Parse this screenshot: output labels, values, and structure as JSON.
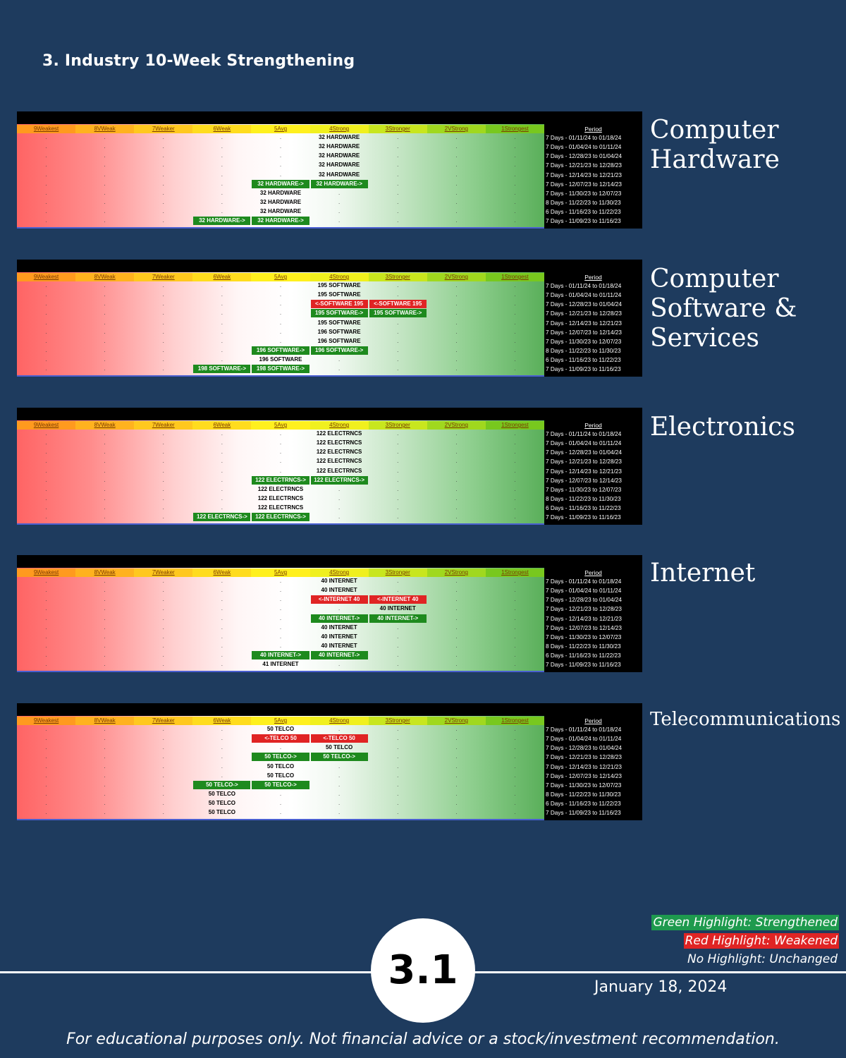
{
  "page_title": "3. Industry 10-Week Strengthening",
  "columns": [
    "9Weakest",
    "8VWeak",
    "7Weaker",
    "6Weak",
    "5Avg",
    "4Strong",
    "3Stronger",
    "2VStrong",
    "1Strongest"
  ],
  "period_header": "Period",
  "periods": [
    "7 Days - 01/11/24 to 01/18/24",
    "7 Days - 01/04/24 to 01/11/24",
    "7 Days - 12/28/23 to 01/04/24",
    "7 Days - 12/21/23 to 12/28/23",
    "7 Days - 12/14/23 to 12/21/23",
    "7 Days - 12/07/23 to 12/14/23",
    "7 Days - 11/30/23 to 12/07/23",
    "8 Days - 11/22/23 to 11/30/23",
    "6 Days - 11/16/23 to 11/22/23",
    "7 Days - 11/09/23 to 11/16/23"
  ],
  "colors": {
    "strengthened": "#1e8a1e",
    "weakened": "#e02424",
    "background": "#1e3b5e"
  },
  "sectors": [
    {
      "title": "Computer\nHardware",
      "rows": [
        [
          {
            "col": 5,
            "text": "32 HARDWARE",
            "hl": "none"
          }
        ],
        [
          {
            "col": 5,
            "text": "32 HARDWARE",
            "hl": "none"
          }
        ],
        [
          {
            "col": 5,
            "text": "32 HARDWARE",
            "hl": "none"
          }
        ],
        [
          {
            "col": 5,
            "text": "32 HARDWARE",
            "hl": "none"
          }
        ],
        [
          {
            "col": 5,
            "text": "32 HARDWARE",
            "hl": "none"
          }
        ],
        [
          {
            "col": 4,
            "text": "32 HARDWARE->",
            "hl": "green"
          },
          {
            "col": 5,
            "text": "32 HARDWARE->",
            "hl": "green"
          }
        ],
        [
          {
            "col": 4,
            "text": "32 HARDWARE",
            "hl": "none"
          }
        ],
        [
          {
            "col": 4,
            "text": "32 HARDWARE",
            "hl": "none"
          }
        ],
        [
          {
            "col": 4,
            "text": "32 HARDWARE",
            "hl": "none"
          }
        ],
        [
          {
            "col": 3,
            "text": "32 HARDWARE->",
            "hl": "green"
          },
          {
            "col": 4,
            "text": "32 HARDWARE->",
            "hl": "green"
          }
        ]
      ]
    },
    {
      "title": "Computer\nSoftware &\nServices",
      "rows": [
        [
          {
            "col": 5,
            "text": "195 SOFTWARE",
            "hl": "none"
          }
        ],
        [
          {
            "col": 5,
            "text": "195 SOFTWARE",
            "hl": "none"
          }
        ],
        [
          {
            "col": 5,
            "text": "<-SOFTWARE 195",
            "hl": "red"
          },
          {
            "col": 6,
            "text": "<-SOFTWARE 195",
            "hl": "red"
          }
        ],
        [
          {
            "col": 5,
            "text": "195 SOFTWARE->",
            "hl": "green"
          },
          {
            "col": 6,
            "text": "195 SOFTWARE->",
            "hl": "green"
          }
        ],
        [
          {
            "col": 5,
            "text": "195 SOFTWARE",
            "hl": "none"
          }
        ],
        [
          {
            "col": 5,
            "text": "196 SOFTWARE",
            "hl": "none"
          }
        ],
        [
          {
            "col": 5,
            "text": "196 SOFTWARE",
            "hl": "none"
          }
        ],
        [
          {
            "col": 4,
            "text": "196 SOFTWARE->",
            "hl": "green"
          },
          {
            "col": 5,
            "text": "196 SOFTWARE->",
            "hl": "green"
          }
        ],
        [
          {
            "col": 4,
            "text": "196 SOFTWARE",
            "hl": "none"
          }
        ],
        [
          {
            "col": 3,
            "text": "198 SOFTWARE->",
            "hl": "green"
          },
          {
            "col": 4,
            "text": "198 SOFTWARE->",
            "hl": "green"
          }
        ]
      ]
    },
    {
      "title": "Electronics",
      "rows": [
        [
          {
            "col": 5,
            "text": "122 ELECTRNCS",
            "hl": "none"
          }
        ],
        [
          {
            "col": 5,
            "text": "122 ELECTRNCS",
            "hl": "none"
          }
        ],
        [
          {
            "col": 5,
            "text": "122 ELECTRNCS",
            "hl": "none"
          }
        ],
        [
          {
            "col": 5,
            "text": "122 ELECTRNCS",
            "hl": "none"
          }
        ],
        [
          {
            "col": 5,
            "text": "122 ELECTRNCS",
            "hl": "none"
          }
        ],
        [
          {
            "col": 4,
            "text": "122 ELECTRNCS->",
            "hl": "green"
          },
          {
            "col": 5,
            "text": "122 ELECTRNCS->",
            "hl": "green"
          }
        ],
        [
          {
            "col": 4,
            "text": "122 ELECTRNCS",
            "hl": "none"
          }
        ],
        [
          {
            "col": 4,
            "text": "122 ELECTRNCS",
            "hl": "none"
          }
        ],
        [
          {
            "col": 4,
            "text": "122 ELECTRNCS",
            "hl": "none"
          }
        ],
        [
          {
            "col": 3,
            "text": "122 ELECTRNCS->",
            "hl": "green"
          },
          {
            "col": 4,
            "text": "122 ELECTRNCS->",
            "hl": "green"
          }
        ]
      ]
    },
    {
      "title": "Internet",
      "rows": [
        [
          {
            "col": 5,
            "text": "40 INTERNET",
            "hl": "none"
          }
        ],
        [
          {
            "col": 5,
            "text": "40 INTERNET",
            "hl": "none"
          }
        ],
        [
          {
            "col": 5,
            "text": "<-INTERNET 40",
            "hl": "red"
          },
          {
            "col": 6,
            "text": "<-INTERNET 40",
            "hl": "red"
          }
        ],
        [
          {
            "col": 6,
            "text": "40 INTERNET",
            "hl": "none"
          }
        ],
        [
          {
            "col": 5,
            "text": "40 INTERNET->",
            "hl": "green"
          },
          {
            "col": 6,
            "text": "40 INTERNET->",
            "hl": "green"
          }
        ],
        [
          {
            "col": 5,
            "text": "40 INTERNET",
            "hl": "none"
          }
        ],
        [
          {
            "col": 5,
            "text": "40 INTERNET",
            "hl": "none"
          }
        ],
        [
          {
            "col": 5,
            "text": "40 INTERNET",
            "hl": "none"
          }
        ],
        [
          {
            "col": 4,
            "text": "40 INTERNET->",
            "hl": "green"
          },
          {
            "col": 5,
            "text": "40 INTERNET->",
            "hl": "green"
          }
        ],
        [
          {
            "col": 4,
            "text": "41 INTERNET",
            "hl": "none"
          }
        ]
      ]
    },
    {
      "title": "Telecommunications",
      "rows": [
        [
          {
            "col": 4,
            "text": "50 TELCO",
            "hl": "none"
          }
        ],
        [
          {
            "col": 4,
            "text": "<-TELCO 50",
            "hl": "red"
          },
          {
            "col": 5,
            "text": "<-TELCO 50",
            "hl": "red"
          }
        ],
        [
          {
            "col": 5,
            "text": "50 TELCO",
            "hl": "none"
          }
        ],
        [
          {
            "col": 4,
            "text": "50 TELCO->",
            "hl": "green"
          },
          {
            "col": 5,
            "text": "50 TELCO->",
            "hl": "green"
          }
        ],
        [
          {
            "col": 4,
            "text": "50 TELCO",
            "hl": "none"
          }
        ],
        [
          {
            "col": 4,
            "text": "50 TELCO",
            "hl": "none"
          }
        ],
        [
          {
            "col": 3,
            "text": "50 TELCO->",
            "hl": "green"
          },
          {
            "col": 4,
            "text": "50 TELCO->",
            "hl": "green"
          }
        ],
        [
          {
            "col": 3,
            "text": "50 TELCO",
            "hl": "none"
          }
        ],
        [
          {
            "col": 3,
            "text": "50 TELCO",
            "hl": "none"
          }
        ],
        [
          {
            "col": 3,
            "text": "50 TELCO",
            "hl": "none"
          }
        ]
      ]
    }
  ],
  "legend": {
    "green": "Green Highlight: Strengthened",
    "red": "Red Highlight: Weakened",
    "none": "No Highlight: Unchanged"
  },
  "page_number": "3.1",
  "date": "January 18, 2024",
  "disclaimer": "For educational purposes only. Not financial advice or a stock/investment recommendation."
}
